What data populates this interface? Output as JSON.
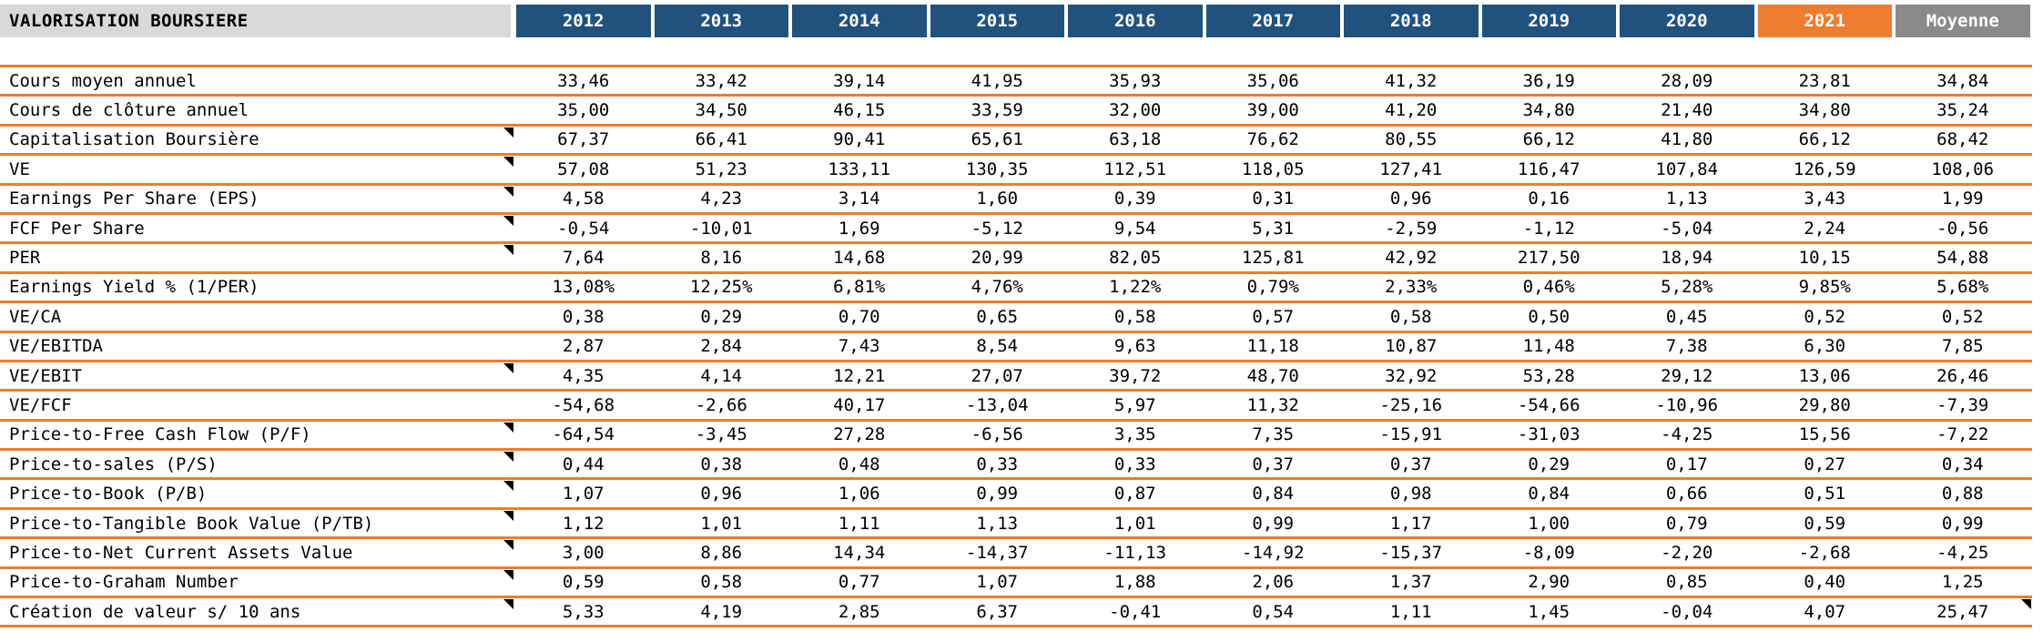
{
  "title": "VALORISATION BOURSIERE",
  "colors": {
    "header_blue": "#21527E",
    "accent_orange": "#ED7D31",
    "moyenne_gray": "#8A8A8A",
    "title_bg": "#D9D9D9",
    "row_line": "#ED7D31",
    "marker_black": "#000000"
  },
  "columns": [
    {
      "label": "2012",
      "style": "year"
    },
    {
      "label": "2013",
      "style": "year"
    },
    {
      "label": "2014",
      "style": "year"
    },
    {
      "label": "2015",
      "style": "year"
    },
    {
      "label": "2016",
      "style": "year"
    },
    {
      "label": "2017",
      "style": "year"
    },
    {
      "label": "2018",
      "style": "year"
    },
    {
      "label": "2019",
      "style": "year"
    },
    {
      "label": "2020",
      "style": "year"
    },
    {
      "label": "2021",
      "style": "current"
    },
    {
      "label": "Moyenne",
      "style": "average"
    }
  ],
  "rows": [
    {
      "label": "Cours moyen annuel",
      "note_marker": false,
      "moyenne_marker": false,
      "values": [
        "33,46",
        "33,42",
        "39,14",
        "41,95",
        "35,93",
        "35,06",
        "41,32",
        "36,19",
        "28,09",
        "23,81",
        "34,84"
      ]
    },
    {
      "label": "Cours de clôture annuel",
      "note_marker": false,
      "moyenne_marker": false,
      "values": [
        "35,00",
        "34,50",
        "46,15",
        "33,59",
        "32,00",
        "39,00",
        "41,20",
        "34,80",
        "21,40",
        "34,80",
        "35,24"
      ]
    },
    {
      "label": "Capitalisation Boursière",
      "note_marker": true,
      "moyenne_marker": false,
      "values": [
        "67,37",
        "66,41",
        "90,41",
        "65,61",
        "63,18",
        "76,62",
        "80,55",
        "66,12",
        "41,80",
        "66,12",
        "68,42"
      ]
    },
    {
      "label": "VE",
      "note_marker": true,
      "moyenne_marker": false,
      "values": [
        "57,08",
        "51,23",
        "133,11",
        "130,35",
        "112,51",
        "118,05",
        "127,41",
        "116,47",
        "107,84",
        "126,59",
        "108,06"
      ]
    },
    {
      "label": "Earnings Per Share (EPS)",
      "note_marker": true,
      "moyenne_marker": false,
      "values": [
        "4,58",
        "4,23",
        "3,14",
        "1,60",
        "0,39",
        "0,31",
        "0,96",
        "0,16",
        "1,13",
        "3,43",
        "1,99"
      ]
    },
    {
      "label": "FCF Per Share",
      "note_marker": true,
      "moyenne_marker": false,
      "values": [
        "-0,54",
        "-10,01",
        "1,69",
        "-5,12",
        "9,54",
        "5,31",
        "-2,59",
        "-1,12",
        "-5,04",
        "2,24",
        "-0,56"
      ]
    },
    {
      "label": "PER",
      "note_marker": true,
      "moyenne_marker": false,
      "values": [
        "7,64",
        "8,16",
        "14,68",
        "20,99",
        "82,05",
        "125,81",
        "42,92",
        "217,50",
        "18,94",
        "10,15",
        "54,88"
      ]
    },
    {
      "label": "Earnings Yield % (1/PER)",
      "note_marker": false,
      "moyenne_marker": false,
      "values": [
        "13,08%",
        "12,25%",
        "6,81%",
        "4,76%",
        "1,22%",
        "0,79%",
        "2,33%",
        "0,46%",
        "5,28%",
        "9,85%",
        "5,68%"
      ]
    },
    {
      "label": "VE/CA",
      "note_marker": false,
      "moyenne_marker": false,
      "values": [
        "0,38",
        "0,29",
        "0,70",
        "0,65",
        "0,58",
        "0,57",
        "0,58",
        "0,50",
        "0,45",
        "0,52",
        "0,52"
      ]
    },
    {
      "label": "VE/EBITDA",
      "note_marker": false,
      "moyenne_marker": false,
      "values": [
        "2,87",
        "2,84",
        "7,43",
        "8,54",
        "9,63",
        "11,18",
        "10,87",
        "11,48",
        "7,38",
        "6,30",
        "7,85"
      ]
    },
    {
      "label": "VE/EBIT",
      "note_marker": true,
      "moyenne_marker": false,
      "values": [
        "4,35",
        "4,14",
        "12,21",
        "27,07",
        "39,72",
        "48,70",
        "32,92",
        "53,28",
        "29,12",
        "13,06",
        "26,46"
      ]
    },
    {
      "label": "VE/FCF",
      "note_marker": false,
      "moyenne_marker": false,
      "values": [
        "-54,68",
        "-2,66",
        "40,17",
        "-13,04",
        "5,97",
        "11,32",
        "-25,16",
        "-54,66",
        "-10,96",
        "29,80",
        "-7,39"
      ]
    },
    {
      "label": "Price-to-Free Cash Flow (P/F)",
      "note_marker": true,
      "moyenne_marker": false,
      "values": [
        "-64,54",
        "-3,45",
        "27,28",
        "-6,56",
        "3,35",
        "7,35",
        "-15,91",
        "-31,03",
        "-4,25",
        "15,56",
        "-7,22"
      ]
    },
    {
      "label": "Price-to-sales (P/S)",
      "note_marker": true,
      "moyenne_marker": false,
      "values": [
        "0,44",
        "0,38",
        "0,48",
        "0,33",
        "0,33",
        "0,37",
        "0,37",
        "0,29",
        "0,17",
        "0,27",
        "0,34"
      ]
    },
    {
      "label": "Price-to-Book (P/B)",
      "note_marker": true,
      "moyenne_marker": false,
      "values": [
        "1,07",
        "0,96",
        "1,06",
        "0,99",
        "0,87",
        "0,84",
        "0,98",
        "0,84",
        "0,66",
        "0,51",
        "0,88"
      ]
    },
    {
      "label": "Price-to-Tangible Book Value (P/TB)",
      "note_marker": true,
      "moyenne_marker": false,
      "values": [
        "1,12",
        "1,01",
        "1,11",
        "1,13",
        "1,01",
        "0,99",
        "1,17",
        "1,00",
        "0,79",
        "0,59",
        "0,99"
      ]
    },
    {
      "label": "Price-to-Net Current Assets Value",
      "note_marker": true,
      "moyenne_marker": false,
      "values": [
        "3,00",
        "8,86",
        "14,34",
        "-14,37",
        "-11,13",
        "-14,92",
        "-15,37",
        "-8,09",
        "-2,20",
        "-2,68",
        "-4,25"
      ]
    },
    {
      "label": "Price-to-Graham Number",
      "note_marker": true,
      "moyenne_marker": false,
      "values": [
        "0,59",
        "0,58",
        "0,77",
        "1,07",
        "1,88",
        "2,06",
        "1,37",
        "2,90",
        "0,85",
        "0,40",
        "1,25"
      ]
    },
    {
      "label": "Création de valeur s/ 10 ans",
      "note_marker": true,
      "moyenne_marker": true,
      "values": [
        "5,33",
        "4,19",
        "2,85",
        "6,37",
        "-0,41",
        "0,54",
        "1,11",
        "1,45",
        "-0,04",
        "4,07",
        "25,47"
      ]
    }
  ]
}
